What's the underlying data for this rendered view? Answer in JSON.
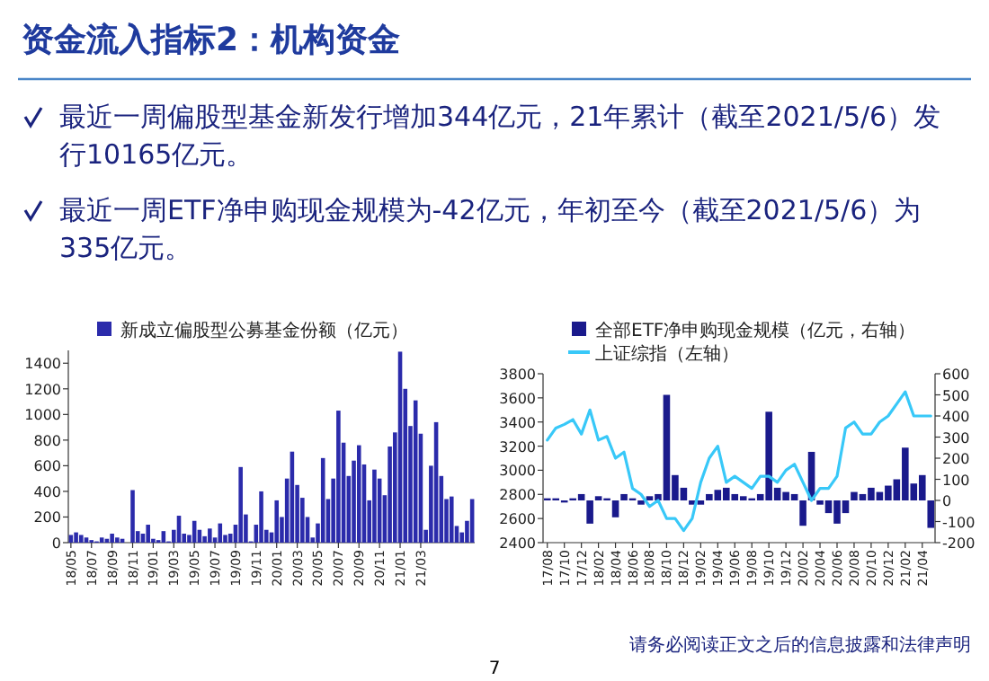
{
  "chart_data": [
    {
      "type": "other",
      "title": "资金流入指标2：机构资金",
      "annotations": [
        "最近一周偏股型基金新发行增加344亿元，21年累计（截至2021/5/6）发行10165亿元。",
        "最近一周ETF净申购现金规模为-42亿元，年初至今（截至2021/5/6）为335亿元。",
        "请务必阅读正文之后的信息披露和法律声明",
        "7"
      ]
    },
    {
      "type": "bar",
      "legend": "top",
      "ylim": [
        0,
        1500
      ],
      "yticks": [
        0,
        200,
        400,
        600,
        800,
        1000,
        1200,
        1400
      ],
      "categories": [
        "18/05",
        null,
        null,
        null,
        "18/07",
        null,
        null,
        null,
        "18/09",
        null,
        null,
        null,
        "18/11",
        null,
        null,
        null,
        "19/01",
        null,
        null,
        null,
        "19/03",
        null,
        null,
        null,
        "19/05",
        null,
        null,
        null,
        "19/07",
        null,
        null,
        null,
        "19/09",
        null,
        null,
        null,
        "19/11",
        null,
        null,
        null,
        "20/01",
        null,
        null,
        null,
        "20/03",
        null,
        null,
        null,
        "20/05",
        null,
        null,
        null,
        "20/07",
        null,
        null,
        null,
        "20/09",
        null,
        null,
        null,
        "20/11",
        null,
        null,
        null,
        "21/01",
        null,
        null,
        null,
        "21/03",
        null,
        null,
        null,
        null,
        null,
        null,
        null,
        null,
        null,
        null
      ],
      "series": [
        {
          "name": "新成立偏股型公募基金份额（亿元）",
          "color": "#2b2bab",
          "values": [
            60,
            80,
            60,
            40,
            20,
            10,
            40,
            30,
            70,
            40,
            30,
            0,
            410,
            90,
            70,
            140,
            30,
            20,
            90,
            10,
            100,
            210,
            70,
            60,
            170,
            100,
            50,
            110,
            40,
            150,
            60,
            70,
            140,
            590,
            220,
            10,
            140,
            400,
            100,
            80,
            330,
            200,
            500,
            710,
            450,
            350,
            200,
            40,
            150,
            660,
            340,
            500,
            1030,
            780,
            520,
            640,
            760,
            610,
            330,
            570,
            500,
            370,
            750,
            860,
            1490,
            1200,
            910,
            1110,
            850,
            100,
            600,
            940,
            520,
            340,
            360,
            130,
            80,
            170,
            340
          ]
        }
      ]
    },
    {
      "type": "bar",
      "legend": "top",
      "ylim": [
        2400,
        3800
      ],
      "yticks": [
        2400,
        2600,
        2800,
        3000,
        3200,
        3400,
        3600,
        3800
      ],
      "y2lim": [
        -200,
        600
      ],
      "y2ticks": [
        -200,
        -100,
        0,
        100,
        200,
        300,
        400,
        500,
        600
      ],
      "categories": [
        "17/08",
        null,
        "17/10",
        null,
        "17/12",
        null,
        "18/02",
        null,
        "18/04",
        null,
        "18/06",
        null,
        "18/08",
        null,
        "18/10",
        null,
        "18/12",
        null,
        "19/02",
        null,
        "19/04",
        null,
        "19/06",
        null,
        "19/08",
        null,
        "19/10",
        null,
        "19/12",
        null,
        "20/02",
        null,
        "20/04",
        null,
        "20/06",
        null,
        "20/08",
        null,
        "20/10",
        null,
        "20/12",
        null,
        "21/02",
        null,
        "21/04",
        null
      ],
      "series": [
        {
          "name": "全部ETF净申购现金规模（亿元，右轴）",
          "type": "bar",
          "axis": "y2",
          "color": "#1a1a8c",
          "values": [
            10,
            10,
            -10,
            10,
            30,
            -110,
            20,
            10,
            -80,
            30,
            10,
            -20,
            20,
            30,
            500,
            120,
            60,
            -20,
            -20,
            30,
            50,
            60,
            30,
            20,
            10,
            30,
            420,
            60,
            40,
            30,
            -120,
            230,
            -20,
            -60,
            -110,
            -60,
            40,
            30,
            60,
            40,
            70,
            100,
            250,
            80,
            120,
            -130
          ]
        },
        {
          "name": "上证综指（左轴）",
          "type": "line",
          "color": "#38c8f8",
          "values": [
            3250,
            3350,
            3380,
            3420,
            3300,
            3500,
            3250,
            3280,
            3100,
            3150,
            2850,
            2800,
            2700,
            2750,
            2600,
            2600,
            2500,
            2600,
            2900,
            3100,
            3200,
            2900,
            2950,
            2900,
            2850,
            2950,
            2950,
            2900,
            3000,
            3050,
            2900,
            2750,
            2850,
            2850,
            2950,
            3350,
            3400,
            3300,
            3300,
            3400,
            3450,
            3550,
            3650,
            3450,
            3450,
            3450
          ]
        }
      ]
    }
  ]
}
